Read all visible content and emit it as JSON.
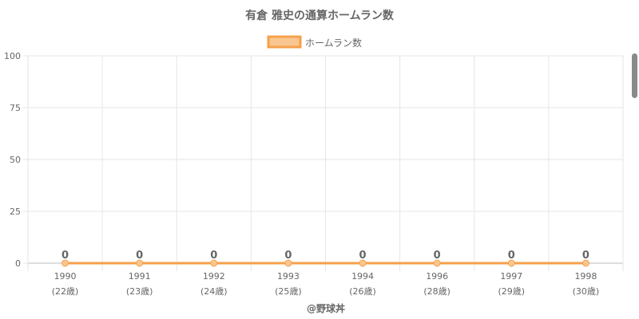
{
  "chart_data": {
    "type": "line",
    "title": "有倉 雅史の通算ホームラン数",
    "categories": [
      "1990",
      "1991",
      "1992",
      "1993",
      "1994",
      "1996",
      "1997",
      "1998"
    ],
    "category_sublabels": [
      "(22歳)",
      "(23歳)",
      "(24歳)",
      "(25歳)",
      "(26歳)",
      "(28歳)",
      "(29歳)",
      "(30歳)"
    ],
    "series": [
      {
        "name": "ホームラン数",
        "values": [
          0,
          0,
          0,
          0,
          0,
          0,
          0,
          0
        ],
        "data_labels": [
          "0",
          "0",
          "0",
          "0",
          "0",
          "0",
          "0",
          "0"
        ]
      }
    ],
    "y_ticks": [
      "0",
      "25",
      "50",
      "75",
      "100"
    ],
    "ylim": [
      0,
      100
    ],
    "grid": true,
    "legend_position": "top-center",
    "credit": "@野球丼",
    "colors": {
      "series": "#f5a04a",
      "series_fill": "#f9c690",
      "grid": "#e6e6e6",
      "text": "#666666"
    }
  }
}
